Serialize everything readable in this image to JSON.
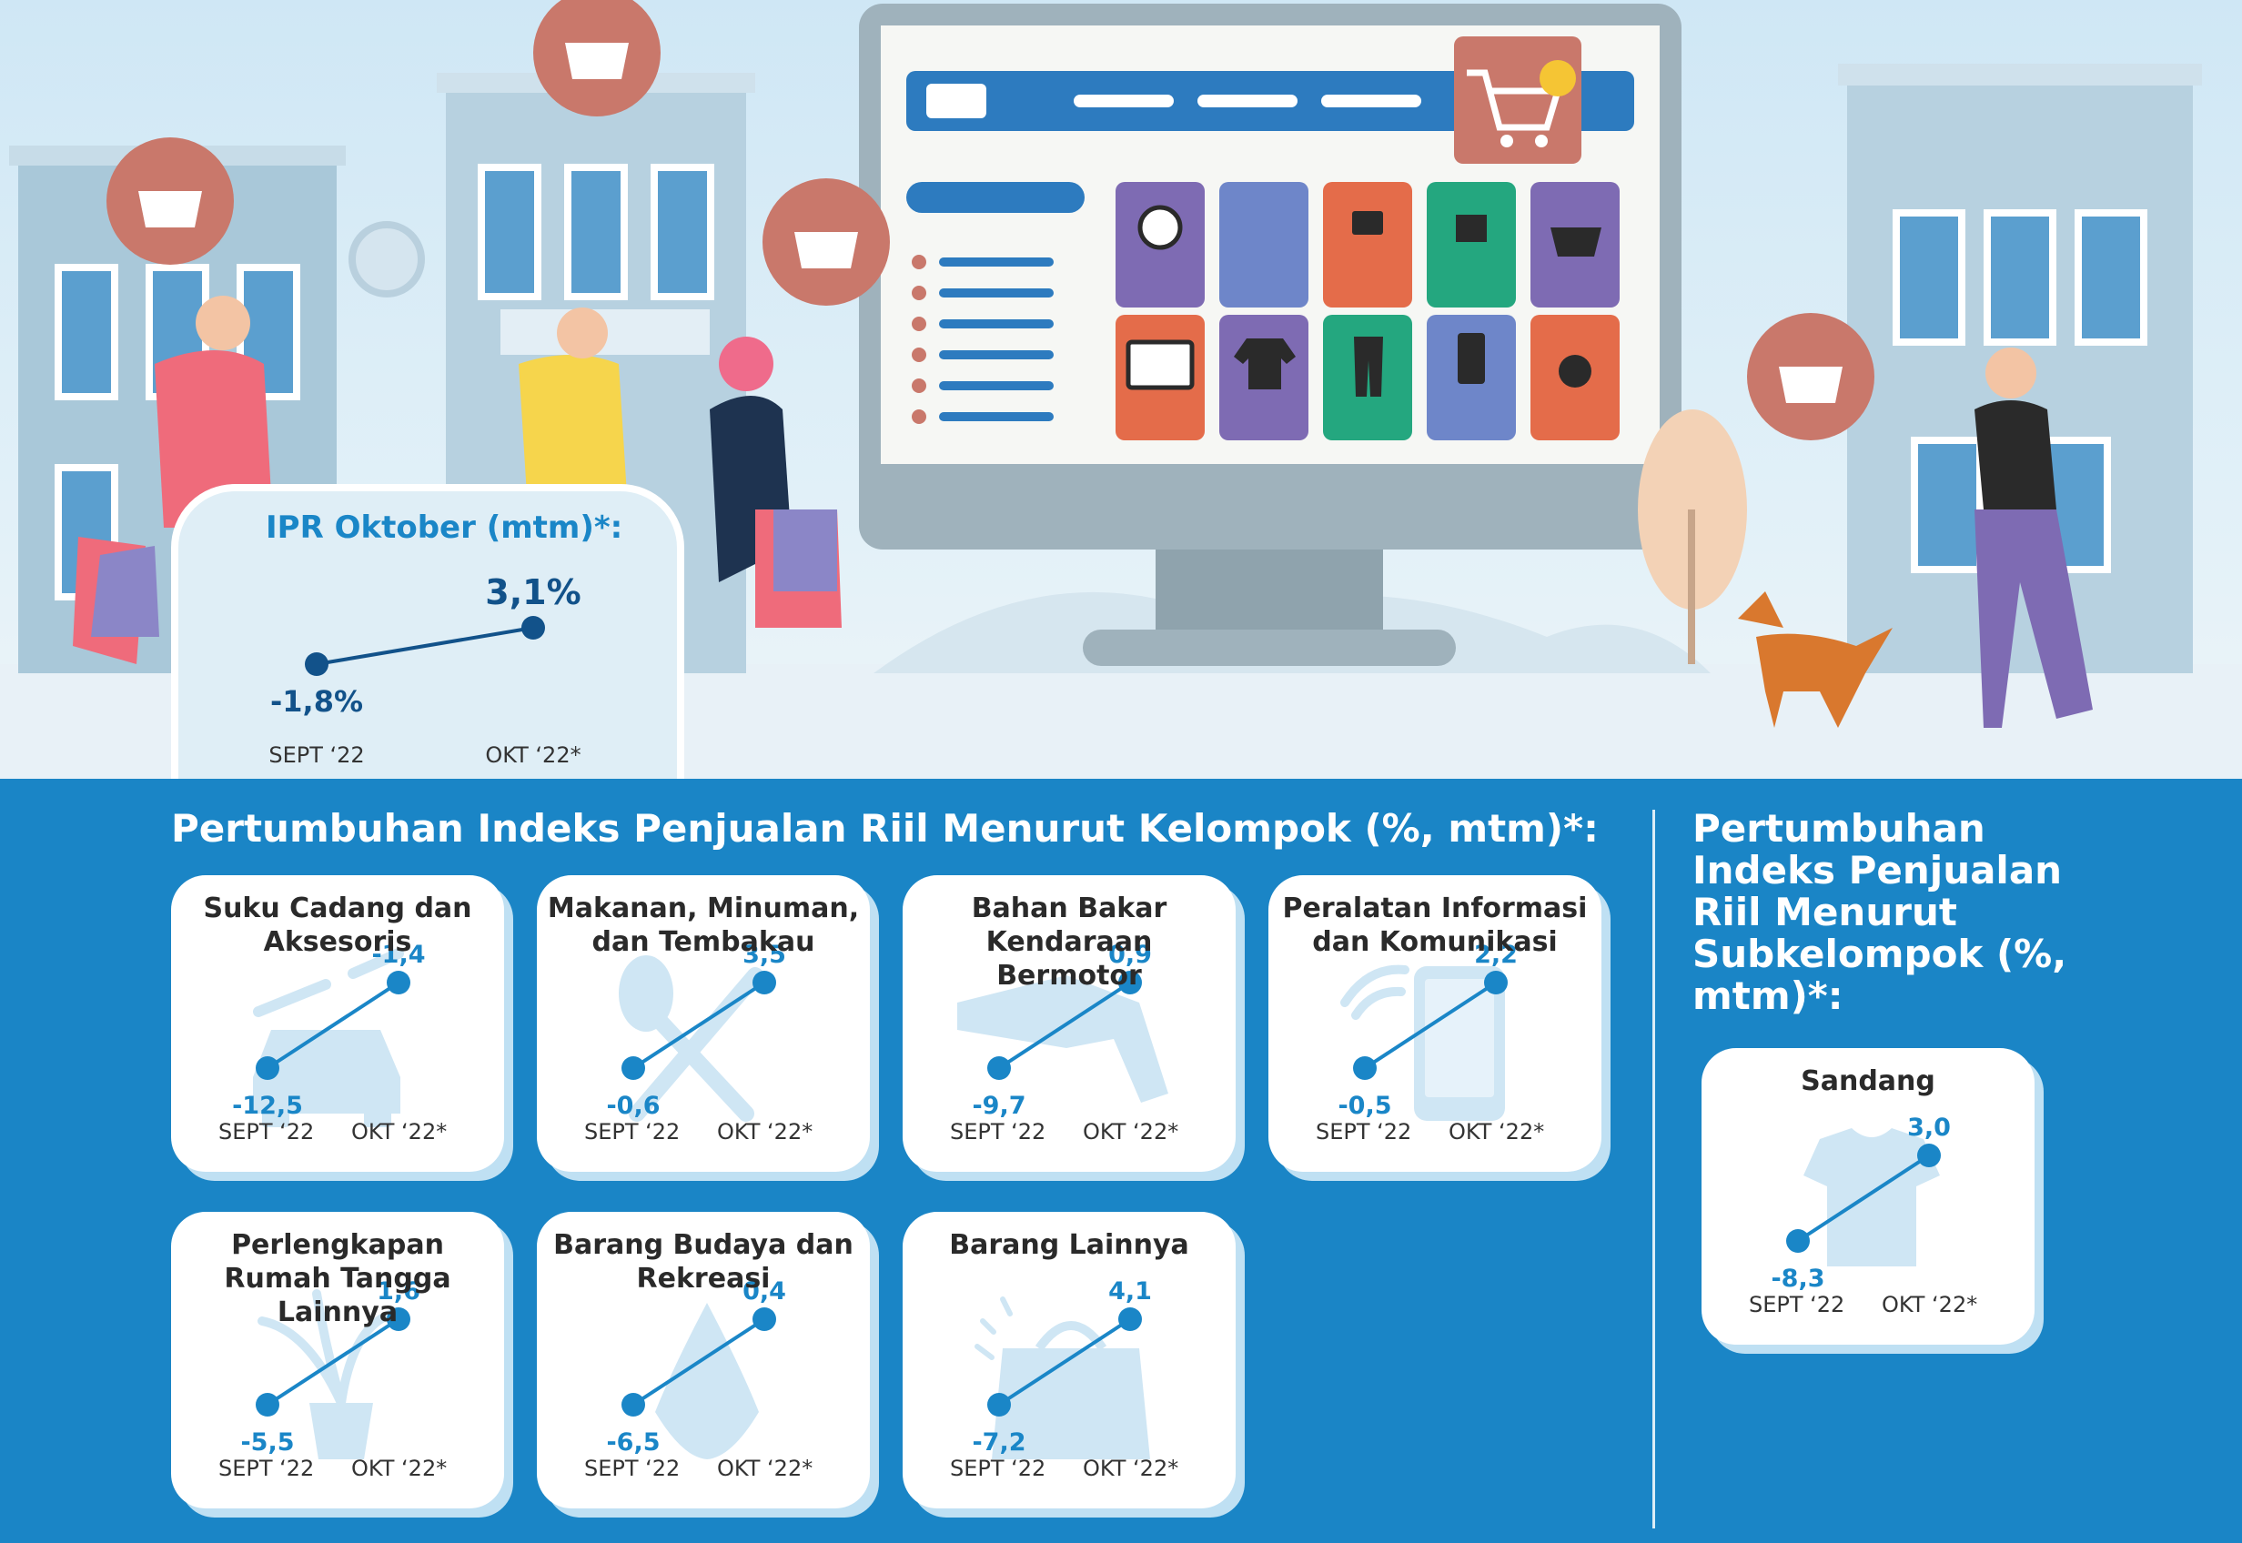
{
  "colors": {
    "panel_blue": "#1a85c6",
    "line_blue": "#1a86c7",
    "dark_blue": "#12528a",
    "card_shadow": "#bfe0f3",
    "icon_light": "#cfe6f4"
  },
  "ipr": {
    "title": "IPR Oktober (mtm)*:",
    "categories": [
      "SEPT ‘22",
      "OKT ‘22*"
    ],
    "values": [
      -1.8,
      3.1
    ],
    "value_labels": [
      "-1,8%",
      "3,1%"
    ]
  },
  "main_title": "Pertumbuhan Indeks Penjualan Riil Menurut Kelompok (%, mtm)*:",
  "side_title": "Pertumbuhan Indeks Penjualan Riil Menurut Subkelompok (%, mtm)*:",
  "chart_data": [
    {
      "type": "line",
      "title": "IPR Oktober (mtm)*:",
      "categories": [
        "SEPT ‘22",
        "OKT ‘22*"
      ],
      "values": [
        -1.8,
        3.1
      ],
      "value_labels": [
        "-1,8%",
        "3,1%"
      ]
    },
    {
      "type": "line",
      "title": "Suku Cadang dan Aksesoris",
      "categories": [
        "SEPT ‘22",
        "OKT ‘22*"
      ],
      "values": [
        -12.5,
        -1.4
      ],
      "value_labels": [
        "-12,5",
        "-1,4"
      ],
      "icon": "car-wrench-icon"
    },
    {
      "type": "line",
      "title": "Makanan, Minuman, dan Tembakau",
      "categories": [
        "SEPT ‘22",
        "OKT ‘22*"
      ],
      "values": [
        -0.6,
        3.5
      ],
      "value_labels": [
        "-0,6",
        "3,5"
      ],
      "icon": "spoon-fork-icon"
    },
    {
      "type": "line",
      "title": "Bahan Bakar Kendaraan Bermotor",
      "categories": [
        "SEPT ‘22",
        "OKT ‘22*"
      ],
      "values": [
        -9.7,
        0.9
      ],
      "value_labels": [
        "-9,7",
        "0,9"
      ],
      "icon": "fuel-nozzle-icon"
    },
    {
      "type": "line",
      "title": "Peralatan Informasi dan Komunikasi",
      "categories": [
        "SEPT ‘22",
        "OKT ‘22*"
      ],
      "values": [
        -0.5,
        2.2
      ],
      "value_labels": [
        "-0,5",
        "2,2"
      ],
      "icon": "smartphone-wifi-icon"
    },
    {
      "type": "line",
      "title": "Perlengkapan Rumah Tangga Lainnya",
      "categories": [
        "SEPT ‘22",
        "OKT ‘22*"
      ],
      "values": [
        -5.5,
        1.6
      ],
      "value_labels": [
        "-5,5",
        "1,6"
      ],
      "icon": "potted-plant-icon"
    },
    {
      "type": "line",
      "title": "Barang Budaya dan Rekreasi",
      "categories": [
        "SEPT ‘22",
        "OKT ‘22*"
      ],
      "values": [
        -6.5,
        0.4
      ],
      "value_labels": [
        "-6,5",
        "0,4"
      ],
      "icon": "wayang-icon"
    },
    {
      "type": "line",
      "title": "Barang Lainnya",
      "categories": [
        "SEPT ‘22",
        "OKT ‘22*"
      ],
      "values": [
        -7.2,
        4.1
      ],
      "value_labels": [
        "-7,2",
        "4,1"
      ],
      "icon": "shopping-bag-icon"
    },
    {
      "type": "line",
      "title": "Sandang",
      "categories": [
        "SEPT ‘22",
        "OKT ‘22*"
      ],
      "values": [
        -8.3,
        3.0
      ],
      "value_labels": [
        "-8,3",
        "3,0"
      ],
      "icon": "tshirt-icon"
    }
  ]
}
